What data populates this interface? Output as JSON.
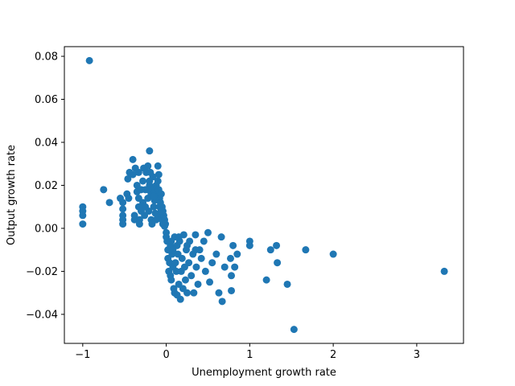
{
  "chart_data": {
    "type": "scatter",
    "title": "",
    "xlabel": "Unemployment growth rate",
    "ylabel": "Output growth rate",
    "xlim": [
      -1.22,
      3.56
    ],
    "ylim": [
      -0.0535,
      0.0845
    ],
    "x_ticks": [
      -1,
      0,
      1,
      2,
      3
    ],
    "x_tick_labels": [
      "−1",
      "0",
      "1",
      "2",
      "3"
    ],
    "y_ticks": [
      -0.04,
      -0.02,
      0.0,
      0.02,
      0.04,
      0.06,
      0.08
    ],
    "y_tick_labels": [
      "−0.04",
      "−0.02",
      "0.00",
      "0.02",
      "0.04",
      "0.06",
      "0.08"
    ],
    "grid": false,
    "marker_color": "#1f77b4",
    "points": [
      [
        -0.92,
        0.078
      ],
      [
        -1.0,
        0.01
      ],
      [
        -1.0,
        0.008
      ],
      [
        -1.0,
        0.006
      ],
      [
        -1.0,
        0.002
      ],
      [
        -0.75,
        0.018
      ],
      [
        -0.68,
        0.012
      ],
      [
        -0.55,
        0.014
      ],
      [
        -0.52,
        0.012
      ],
      [
        -0.52,
        0.009
      ],
      [
        -0.52,
        0.006
      ],
      [
        -0.52,
        0.004
      ],
      [
        -0.52,
        0.002
      ],
      [
        -0.47,
        0.016
      ],
      [
        -0.46,
        0.023
      ],
      [
        -0.45,
        0.014
      ],
      [
        -0.44,
        0.026
      ],
      [
        -0.4,
        0.032
      ],
      [
        -0.4,
        0.025
      ],
      [
        -0.38,
        0.004
      ],
      [
        -0.38,
        0.006
      ],
      [
        -0.37,
        0.028
      ],
      [
        -0.35,
        0.02
      ],
      [
        -0.35,
        0.017
      ],
      [
        -0.33,
        0.026
      ],
      [
        -0.33,
        0.014
      ],
      [
        -0.33,
        0.01
      ],
      [
        -0.32,
        0.004
      ],
      [
        -0.32,
        0.002
      ],
      [
        -0.3,
        0.018
      ],
      [
        -0.28,
        0.022
      ],
      [
        -0.28,
        0.012
      ],
      [
        -0.27,
        0.028
      ],
      [
        -0.26,
        0.006
      ],
      [
        -0.25,
        0.018
      ],
      [
        -0.24,
        0.026
      ],
      [
        -0.22,
        0.029
      ],
      [
        -0.22,
        0.014
      ],
      [
        -0.21,
        0.008
      ],
      [
        -0.2,
        0.036
      ],
      [
        -0.2,
        0.02
      ],
      [
        -0.2,
        0.022
      ],
      [
        -0.19,
        0.026
      ],
      [
        -0.18,
        0.016
      ],
      [
        -0.18,
        0.004
      ],
      [
        -0.17,
        0.002
      ],
      [
        -0.16,
        0.018
      ],
      [
        -0.16,
        0.024
      ],
      [
        -0.15,
        0.01
      ],
      [
        -0.14,
        0.013
      ],
      [
        -0.13,
        0.007
      ],
      [
        -0.12,
        0.02
      ],
      [
        -0.11,
        0.016
      ],
      [
        -0.1,
        0.029
      ],
      [
        -0.1,
        0.022
      ],
      [
        -0.09,
        0.025
      ],
      [
        -0.09,
        0.018
      ],
      [
        -0.08,
        0.014
      ],
      [
        -0.08,
        0.01
      ],
      [
        -0.07,
        0.012
      ],
      [
        -0.07,
        0.006
      ],
      [
        -0.06,
        0.016
      ],
      [
        -0.05,
        0.01
      ],
      [
        -0.05,
        0.004
      ],
      [
        -0.04,
        0.008
      ],
      [
        -0.04,
        0.002
      ],
      [
        -0.03,
        0.006
      ],
      [
        -0.02,
        0.004
      ],
      [
        -0.02,
        0.001
      ],
      [
        -0.01,
        0.002
      ],
      [
        -0.15,
        0.015
      ],
      [
        -0.25,
        0.01
      ],
      [
        -0.3,
        0.008
      ],
      [
        -0.12,
        0.004
      ],
      [
        -0.06,
        0.008
      ],
      [
        -0.22,
        0.018
      ],
      [
        0.0,
        -0.002
      ],
      [
        0.0,
        -0.004
      ],
      [
        0.01,
        -0.006
      ],
      [
        0.02,
        -0.01
      ],
      [
        0.02,
        -0.014
      ],
      [
        0.03,
        -0.02
      ],
      [
        0.04,
        -0.016
      ],
      [
        0.05,
        -0.008
      ],
      [
        0.05,
        -0.022
      ],
      [
        0.06,
        -0.024
      ],
      [
        0.07,
        -0.012
      ],
      [
        0.08,
        -0.018
      ],
      [
        0.09,
        -0.028
      ],
      [
        0.1,
        -0.03
      ],
      [
        0.1,
        -0.004
      ],
      [
        0.11,
        -0.016
      ],
      [
        0.12,
        -0.02
      ],
      [
        0.13,
        -0.031
      ],
      [
        0.13,
        -0.008
      ],
      [
        0.14,
        -0.012
      ],
      [
        0.15,
        -0.026
      ],
      [
        0.16,
        -0.006
      ],
      [
        0.17,
        -0.033
      ],
      [
        0.18,
        -0.02
      ],
      [
        0.19,
        -0.014
      ],
      [
        0.2,
        -0.028
      ],
      [
        0.21,
        -0.003
      ],
      [
        0.22,
        -0.018
      ],
      [
        0.23,
        -0.024
      ],
      [
        0.24,
        -0.01
      ],
      [
        0.25,
        -0.03
      ],
      [
        0.27,
        -0.016
      ],
      [
        0.28,
        -0.006
      ],
      [
        0.3,
        -0.022
      ],
      [
        0.32,
        -0.012
      ],
      [
        0.33,
        -0.03
      ],
      [
        0.35,
        -0.003
      ],
      [
        0.36,
        -0.018
      ],
      [
        0.38,
        -0.026
      ],
      [
        0.4,
        -0.01
      ],
      [
        0.42,
        -0.014
      ],
      [
        0.45,
        -0.006
      ],
      [
        0.47,
        -0.02
      ],
      [
        0.5,
        -0.002
      ],
      [
        0.52,
        -0.025
      ],
      [
        0.55,
        -0.016
      ],
      [
        0.6,
        -0.012
      ],
      [
        0.63,
        -0.03
      ],
      [
        0.66,
        -0.004
      ],
      [
        0.67,
        -0.034
      ],
      [
        0.7,
        -0.018
      ],
      [
        0.77,
        -0.014
      ],
      [
        0.78,
        -0.022
      ],
      [
        0.78,
        -0.029
      ],
      [
        0.8,
        -0.008
      ],
      [
        0.82,
        -0.018
      ],
      [
        0.85,
        -0.012
      ],
      [
        1.0,
        -0.006
      ],
      [
        1.0,
        -0.008
      ],
      [
        1.2,
        -0.024
      ],
      [
        1.25,
        -0.01
      ],
      [
        1.32,
        -0.008
      ],
      [
        1.33,
        -0.016
      ],
      [
        1.45,
        -0.026
      ],
      [
        1.53,
        -0.047
      ],
      [
        1.67,
        -0.01
      ],
      [
        2.0,
        -0.012
      ],
      [
        3.33,
        -0.02
      ],
      [
        0.15,
        -0.004
      ],
      [
        0.25,
        -0.008
      ],
      [
        0.35,
        -0.01
      ],
      [
        0.08,
        -0.01
      ],
      [
        0.06,
        -0.006
      ]
    ]
  }
}
